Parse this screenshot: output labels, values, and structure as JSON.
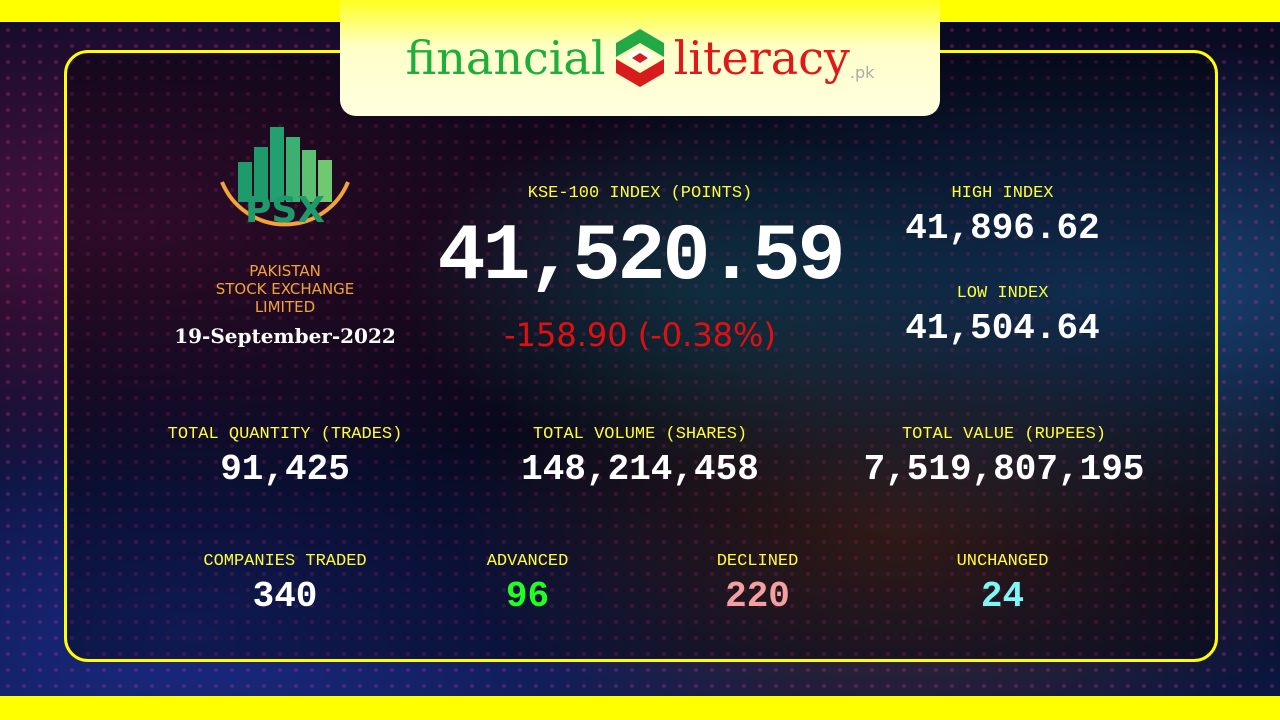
{
  "logo": {
    "part1": "financial",
    "part2": "literacy",
    "suffix": ".pk"
  },
  "psx": {
    "line1": "PAKISTAN",
    "line2": "STOCK EXCHANGE",
    "line3": "LIMITED",
    "abbr": "PSX"
  },
  "date": "19-September-2022",
  "kse": {
    "label": "KSE-100 INDEX (POINTS)",
    "value": "41,520.59",
    "change": "-158.90 (-0.38%)"
  },
  "high": {
    "label": "HIGH INDEX",
    "value": "41,896.62"
  },
  "low": {
    "label": "LOW INDEX",
    "value": "41,504.64"
  },
  "quantity": {
    "label": "TOTAL QUANTITY (TRADES)",
    "value": "91,425"
  },
  "volume": {
    "label": "TOTAL VOLUME (SHARES)",
    "value": "148,214,458"
  },
  "tvalue": {
    "label": "TOTAL VALUE (RUPEES)",
    "value": "7,519,807,195"
  },
  "companies": {
    "label": "COMPANIES TRADED",
    "value": "340"
  },
  "advanced": {
    "label": "ADVANCED",
    "value": "96"
  },
  "declined": {
    "label": "DECLINED",
    "value": "220"
  },
  "unchanged": {
    "label": "UNCHANGED",
    "value": "24"
  },
  "colors": {
    "accent": "#ffff00",
    "negative": "#e01010",
    "advanced": "#22ff22",
    "declined": "#f4a0a0",
    "unchanged": "#7ff7f7"
  }
}
